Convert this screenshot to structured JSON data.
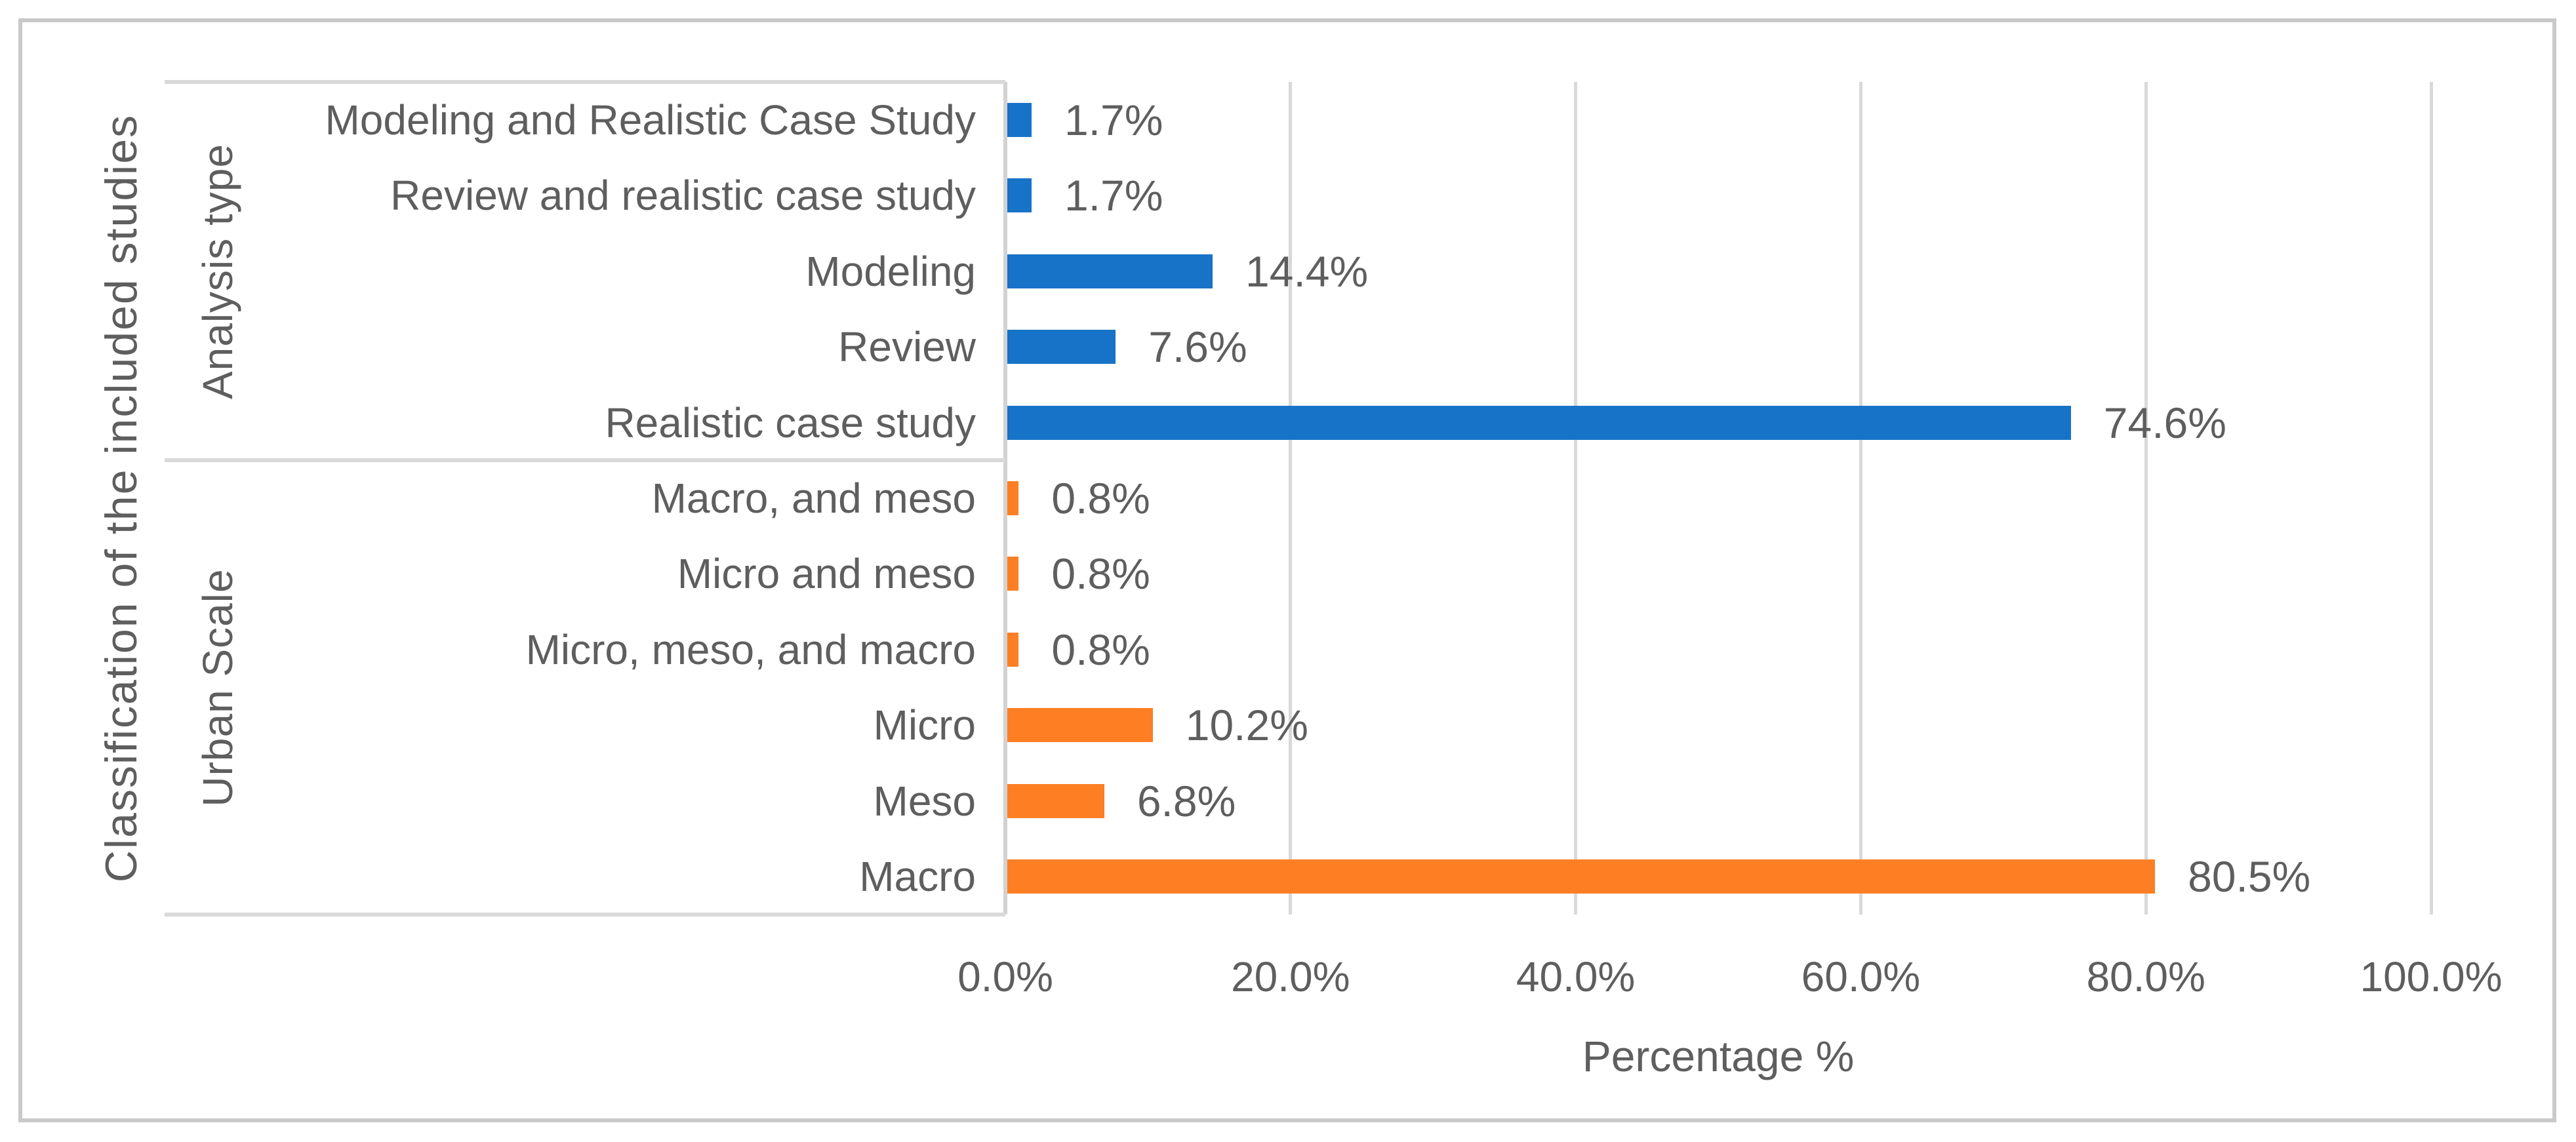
{
  "figure": {
    "background": "#FFFFFF",
    "border_color": "#C9C9C9"
  },
  "chart_data": {
    "type": "bar",
    "orientation": "horizontal",
    "title": "",
    "xlabel": "Percentage %",
    "ylabel": "Classification of the included studies",
    "xlim": [
      0,
      100
    ],
    "x_tick_values": [
      0,
      20,
      40,
      60,
      80,
      100
    ],
    "x_tick_labels": [
      "0.0%",
      "20.0%",
      "40.0%",
      "60.0%",
      "80.0%",
      "100.0%"
    ],
    "grid": true,
    "legend": "none",
    "text_color": "#5E5E5E",
    "gridline_color": "#D9D9D9",
    "groups": [
      {
        "name": "Analysis type",
        "color": "#1773C8",
        "items": [
          {
            "label": "Modeling and Realistic Case Study",
            "value": 1.7,
            "value_label": "1.7%"
          },
          {
            "label": "Review and realistic case study",
            "value": 1.7,
            "value_label": "1.7%"
          },
          {
            "label": "Modeling",
            "value": 14.4,
            "value_label": "14.4%"
          },
          {
            "label": "Review",
            "value": 7.6,
            "value_label": "7.6%"
          },
          {
            "label": "Realistic case study",
            "value": 74.6,
            "value_label": "74.6%"
          }
        ]
      },
      {
        "name": "Urban Scale",
        "color": "#FD7E23",
        "items": [
          {
            "label": "Macro, and meso",
            "value": 0.8,
            "value_label": "0.8%"
          },
          {
            "label": "Micro and meso",
            "value": 0.8,
            "value_label": "0.8%"
          },
          {
            "label": "Micro, meso, and macro",
            "value": 0.8,
            "value_label": "0.8%"
          },
          {
            "label": "Micro",
            "value": 10.2,
            "value_label": "10.2%"
          },
          {
            "label": "Meso",
            "value": 6.8,
            "value_label": "6.8%"
          },
          {
            "label": "Macro",
            "value": 80.5,
            "value_label": "80.5%"
          }
        ]
      }
    ]
  }
}
